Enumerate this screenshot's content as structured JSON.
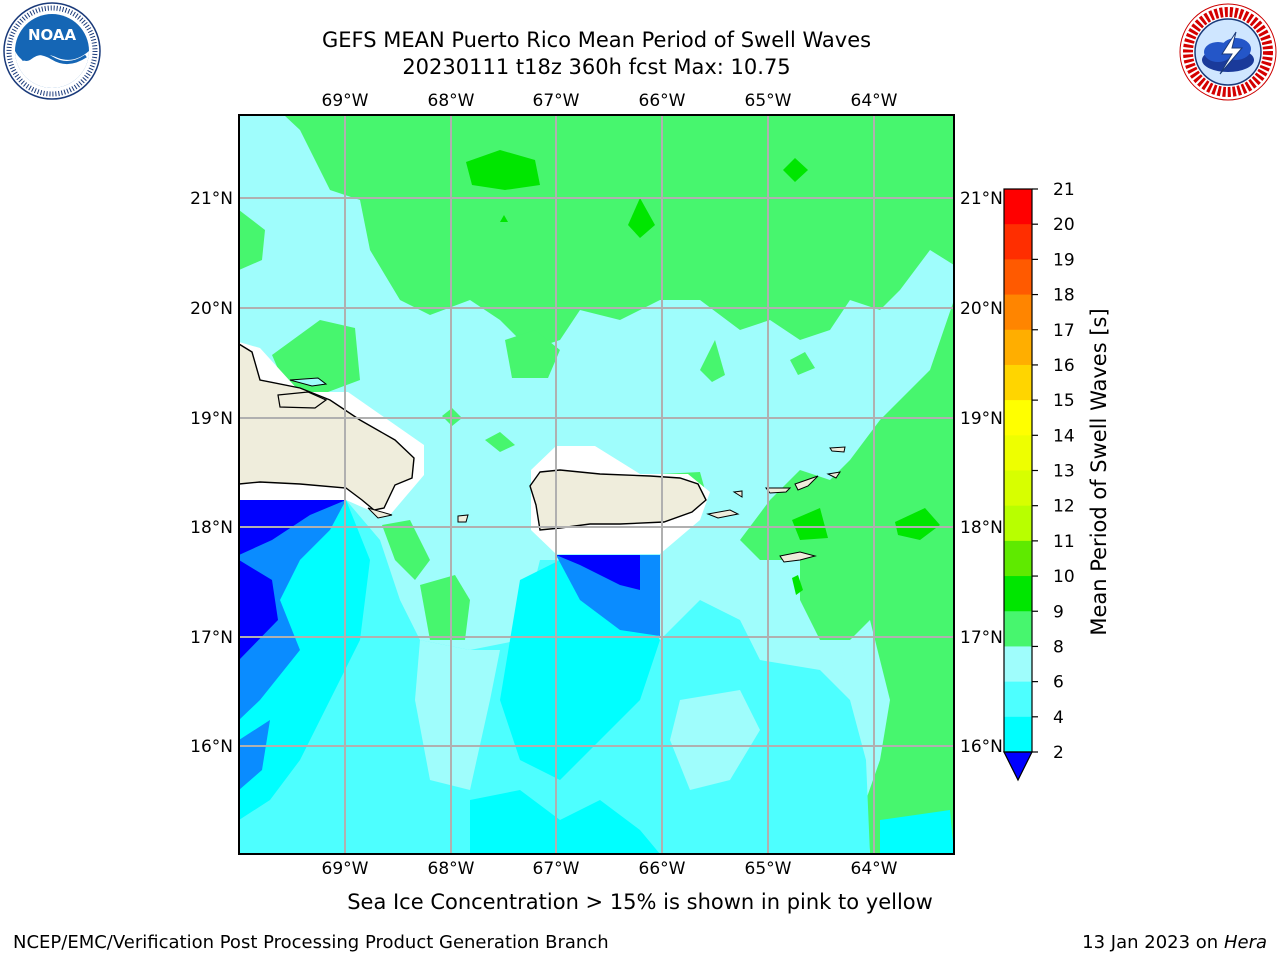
{
  "header": {
    "title_line1": "GEFS MEAN Puerto Rico Mean Period of Swell Waves",
    "title_line2": "20230111 t18z 360h fcst   Max: 10.75"
  },
  "logos": {
    "left": {
      "name": "NOAA",
      "text": "NOAA",
      "ring_text": "NATIONAL OCEANIC AND ATMOSPHERIC ADMINISTRATION · U.S. DEPARTMENT OF COMMERCE"
    },
    "right": {
      "name": "NWS",
      "ring_text": "NATIONAL WEATHER SERVICE"
    }
  },
  "map": {
    "region": "Puerto Rico",
    "lon_labels": [
      "69°W",
      "68°W",
      "67°W",
      "66°W",
      "65°W",
      "64°W"
    ],
    "lat_labels": [
      "21°N",
      "20°N",
      "19°N",
      "18°N",
      "17°N",
      "16°N"
    ],
    "gridlines": true,
    "land_color": "#efeddc"
  },
  "colorbar": {
    "label": "Mean Period of Swell Waves [s]",
    "ticks": [
      "21",
      "20",
      "19",
      "18",
      "17",
      "16",
      "15",
      "14",
      "13",
      "12",
      "11",
      "10",
      "9",
      "8",
      "6",
      "4",
      "2"
    ],
    "colors": [
      "#ff0000",
      "#ff2e00",
      "#ff5a00",
      "#ff8500",
      "#ffae00",
      "#ffd500",
      "#ffff00",
      "#eeff00",
      "#d7ff00",
      "#b8ff00",
      "#5fea00",
      "#00e600",
      "#47f66e",
      "#9ffdfc",
      "#4dffff",
      "#00ffff",
      "#0a8cff",
      "#0000ff"
    ]
  },
  "note": "Sea Ice Concentration > 15% is shown in pink to yellow",
  "footer": {
    "left": "NCEP/EMC/Verification Post Processing Product Generation Branch",
    "right_prefix": "13 Jan 2023 on ",
    "right_host": "Hera"
  }
}
